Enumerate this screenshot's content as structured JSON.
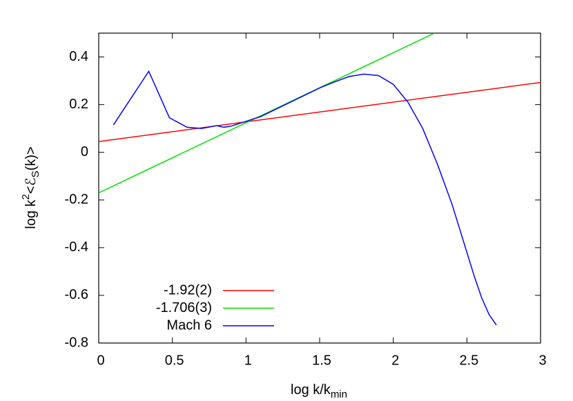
{
  "chart_data": {
    "type": "line",
    "xlabel": [
      "log k/k",
      "min"
    ],
    "ylabel": [
      "log k",
      "2",
      "<ℰ",
      "S",
      "(k)>"
    ],
    "xlim": [
      0,
      3
    ],
    "xticks": [
      0,
      0.5,
      1,
      1.5,
      2,
      2.5,
      3
    ],
    "ylim": [
      -0.8,
      0.5
    ],
    "yticks": [
      -0.8,
      -0.6,
      -0.4,
      -0.2,
      0,
      0.2,
      0.4
    ],
    "legend": "lower left",
    "series": [
      {
        "name": "-1.92(2)",
        "color": "#ff0000",
        "x": [
          0,
          3
        ],
        "values": [
          0.045,
          0.293
        ]
      },
      {
        "name": "-1.706(3)",
        "color": "#00e000",
        "x": [
          0,
          2.28
        ],
        "values": [
          -0.17,
          0.5
        ]
      },
      {
        "name": "Mach 6",
        "color": "#0000ff",
        "x": [
          0.1,
          0.34,
          0.48,
          0.6,
          0.7,
          0.8,
          0.85,
          0.9,
          1.0,
          1.1,
          1.2,
          1.3,
          1.4,
          1.5,
          1.6,
          1.7,
          1.8,
          1.9,
          2.0,
          2.1,
          2.2,
          2.3,
          2.4,
          2.5,
          2.55,
          2.6,
          2.65,
          2.7
        ],
        "values": [
          0.115,
          0.34,
          0.145,
          0.105,
          0.1,
          0.112,
          0.105,
          0.11,
          0.13,
          0.15,
          0.18,
          0.21,
          0.24,
          0.27,
          0.295,
          0.318,
          0.328,
          0.322,
          0.285,
          0.21,
          0.1,
          -0.05,
          -0.22,
          -0.42,
          -0.52,
          -0.61,
          -0.68,
          -0.725
        ]
      }
    ]
  }
}
